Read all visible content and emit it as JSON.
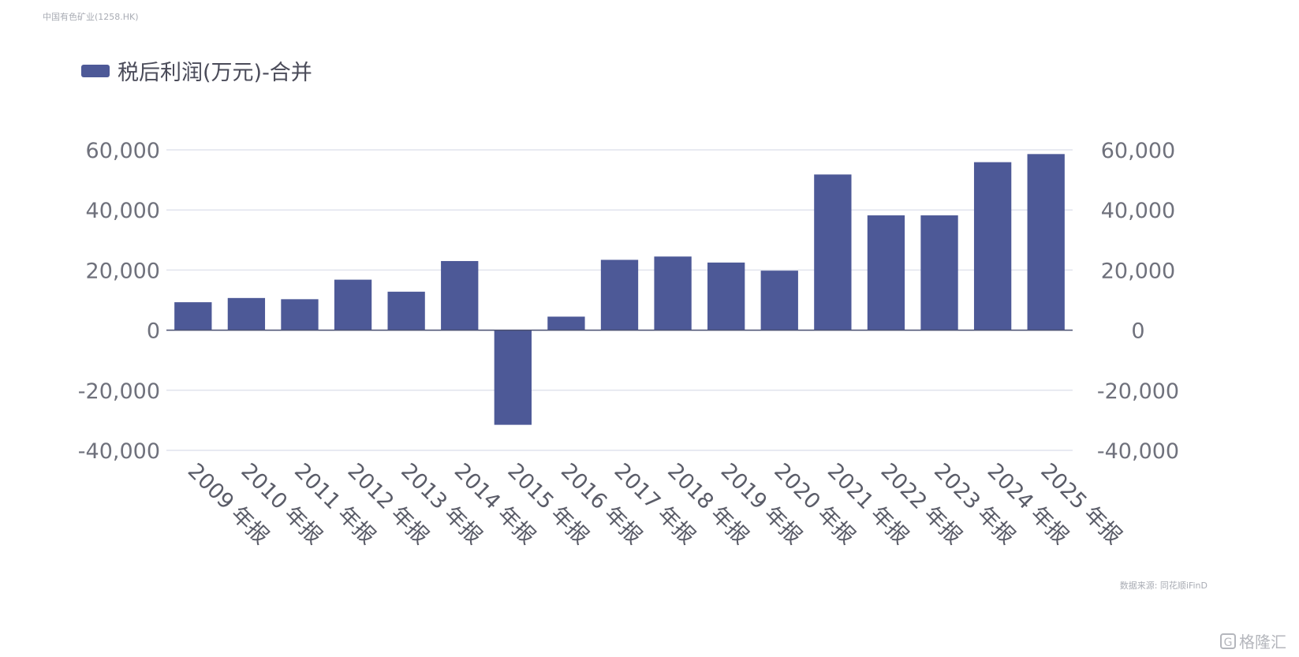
{
  "header": {
    "company": "中国有色矿业(1258.HK)"
  },
  "footer": {
    "source": "数据来源: 同花顺iFinD",
    "watermark": "格隆汇"
  },
  "colors": {
    "bar": "#4d5997",
    "grid": "#e1e4ee",
    "axis": "#4a5070"
  },
  "chart_data": {
    "type": "bar",
    "title": "",
    "legend": "税后利润(万元)-合并",
    "legend_position": "top-left",
    "categories": [
      "2009 年报",
      "2010 年报",
      "2011 年报",
      "2012 年报",
      "2013 年报",
      "2014 年报",
      "2015 年报",
      "2016 年报",
      "2017 年报",
      "2018 年报",
      "2019 年报",
      "2020 年报",
      "2021 年报",
      "2022 年报",
      "2023 年报",
      "2024 年报",
      "2025 年报"
    ],
    "series": [
      {
        "name": "税后利润(万元)-合并",
        "values": [
          9300,
          10700,
          10300,
          16800,
          12800,
          23000,
          -31500,
          4500,
          23400,
          24500,
          22500,
          19800,
          51800,
          38200,
          38200,
          55900,
          58600
        ]
      }
    ],
    "y_ticks": [
      "60,000",
      "40,000",
      "20,000",
      "0",
      "-20,000",
      "-40,000"
    ],
    "ylim": [
      -40000,
      60000
    ],
    "grid": true,
    "dual_y_axis": true
  }
}
